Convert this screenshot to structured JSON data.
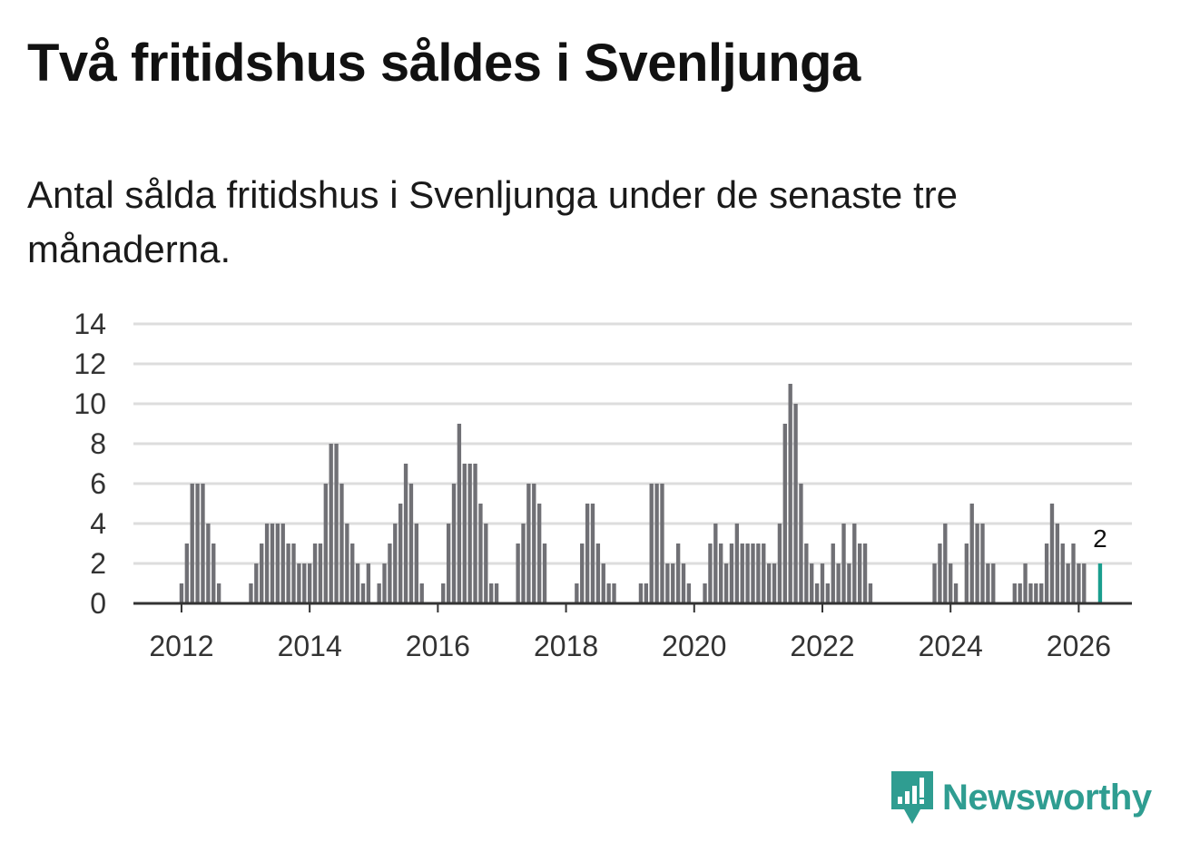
{
  "title": "Två fritidshus såldes i Svenljunga",
  "subtitle": "Antal sålda fritidshus i Svenljunga under de senaste tre månaderna.",
  "brand": {
    "name": "Newsworthy",
    "color": "#2f9d91"
  },
  "chart_data": {
    "type": "bar",
    "title": "Två fritidshus såldes i Svenljunga",
    "xlabel": "",
    "ylabel": "",
    "ylim": [
      0,
      14
    ],
    "xlim": [
      2011.25,
      2026.83
    ],
    "yticks": [
      "0",
      "2",
      "4",
      "6",
      "8",
      "10",
      "12",
      "14"
    ],
    "xticks": [
      "2012",
      "2014",
      "2016",
      "2018",
      "2020",
      "2022",
      "2024",
      "2026"
    ],
    "grid": true,
    "bar_color": "#707075",
    "highlight_color": "#1a9e8e",
    "start_year": 2011,
    "start_month": 3,
    "values": [
      0,
      0,
      0,
      0,
      0,
      0,
      0,
      0,
      0,
      0,
      1,
      3,
      6,
      6,
      6,
      4,
      3,
      1,
      0,
      0,
      0,
      0,
      0,
      1,
      2,
      3,
      4,
      4,
      4,
      4,
      3,
      3,
      2,
      2,
      2,
      3,
      3,
      6,
      8,
      8,
      6,
      4,
      3,
      2,
      1,
      2,
      0,
      1,
      2,
      3,
      4,
      5,
      7,
      6,
      4,
      1,
      0,
      0,
      0,
      1,
      4,
      6,
      9,
      7,
      7,
      7,
      5,
      4,
      1,
      1,
      0,
      0,
      0,
      3,
      4,
      6,
      6,
      5,
      3,
      0,
      0,
      0,
      0,
      0,
      1,
      3,
      5,
      5,
      3,
      2,
      1,
      1,
      0,
      0,
      0,
      0,
      1,
      1,
      6,
      6,
      6,
      2,
      2,
      3,
      2,
      1,
      0,
      0,
      1,
      3,
      4,
      3,
      2,
      3,
      4,
      3,
      3,
      3,
      3,
      3,
      2,
      2,
      4,
      9,
      11,
      10,
      6,
      3,
      2,
      1,
      2,
      1,
      3,
      2,
      4,
      2,
      4,
      3,
      3,
      1,
      0,
      0,
      0,
      0,
      0,
      0,
      0,
      0,
      0,
      0,
      0,
      2,
      3,
      4,
      2,
      1,
      0,
      3,
      5,
      4,
      4,
      2,
      2,
      0,
      0,
      0,
      1,
      1,
      2,
      1,
      1,
      1,
      3,
      5,
      4,
      3,
      2,
      3,
      2,
      2,
      0,
      0,
      2
    ],
    "highlight": {
      "label": "2",
      "value": 2
    }
  }
}
